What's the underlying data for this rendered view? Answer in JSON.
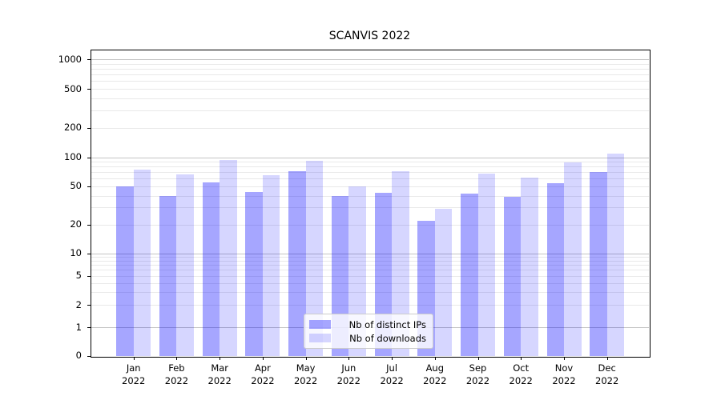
{
  "chart_data": {
    "type": "bar",
    "title": "SCANVIS 2022",
    "categories": [
      {
        "month": "Jan",
        "year": "2022"
      },
      {
        "month": "Feb",
        "year": "2022"
      },
      {
        "month": "Mar",
        "year": "2022"
      },
      {
        "month": "Apr",
        "year": "2022"
      },
      {
        "month": "May",
        "year": "2022"
      },
      {
        "month": "Jun",
        "year": "2022"
      },
      {
        "month": "Jul",
        "year": "2022"
      },
      {
        "month": "Aug",
        "year": "2022"
      },
      {
        "month": "Sep",
        "year": "2022"
      },
      {
        "month": "Oct",
        "year": "2022"
      },
      {
        "month": "Nov",
        "year": "2022"
      },
      {
        "month": "Dec",
        "year": "2022"
      }
    ],
    "series": [
      {
        "name": "Nb of distinct IPs",
        "color": "rgba(0,0,255,0.35)",
        "values": [
          50,
          40,
          55,
          44,
          72,
          40,
          43,
          22,
          42,
          39,
          54,
          71
        ]
      },
      {
        "name": "Nb of downloads",
        "color": "rgba(0,0,255,0.16)",
        "values": [
          75,
          66,
          94,
          65,
          93,
          50,
          72,
          29,
          68,
          62,
          88,
          110
        ]
      }
    ],
    "xlabel": "",
    "ylabel": "",
    "yscale": "log-with-zero",
    "y_tick_labels": [
      "1000",
      "500",
      "200",
      "100",
      "50",
      "20",
      "10",
      "5",
      "2",
      "1",
      "0"
    ],
    "y_ticks": [
      1000,
      500,
      200,
      100,
      50,
      20,
      10,
      5,
      2,
      1,
      0
    ],
    "ylim": [
      0,
      1250
    ],
    "grid": true,
    "legend_position": "lower center",
    "colors": {
      "major_gridline": "#c3c3c3",
      "minor_gridline": "#e9e9e9",
      "spine": "#000000",
      "background": "#ffffff"
    }
  }
}
